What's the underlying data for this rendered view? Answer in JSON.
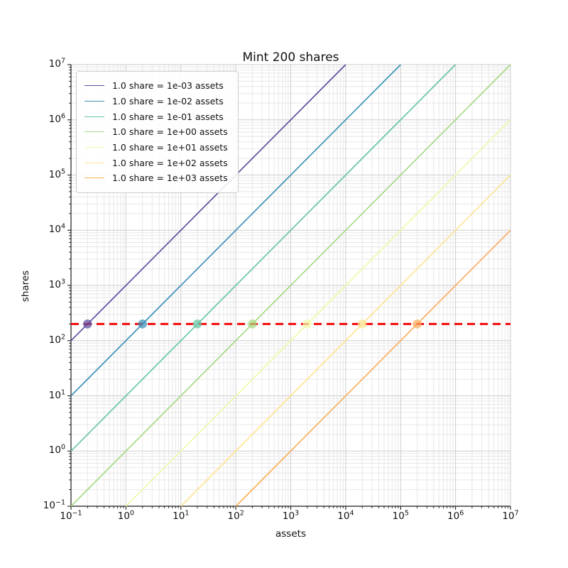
{
  "chart_data": {
    "type": "line",
    "title": "Mint 200 shares",
    "xlabel": "assets",
    "ylabel": "shares",
    "xscale": "log",
    "yscale": "log",
    "xlim": [
      0.1,
      10000000
    ],
    "ylim": [
      0.1,
      10000000
    ],
    "x_tick_exponents": [
      -1,
      0,
      1,
      2,
      3,
      4,
      5,
      6,
      7
    ],
    "y_tick_exponents": [
      -1,
      0,
      1,
      2,
      3,
      4,
      5,
      6,
      7
    ],
    "grid": "major and minor gridlines, both axes",
    "legend_position": "upper left",
    "shares_minted": 200,
    "series": [
      {
        "label": "1.0 share = 1e-03 assets",
        "assets_per_share": 0.001,
        "color": "#5e4fa2",
        "dot": {
          "assets": 0.2,
          "shares": 200
        }
      },
      {
        "label": "1.0 share = 1e-02 assets",
        "assets_per_share": 0.01,
        "color": "#3e93b8",
        "dot": {
          "assets": 2,
          "shares": 200
        }
      },
      {
        "label": "1.0 share = 1e-01 assets",
        "assets_per_share": 0.1,
        "color": "#69c5a4",
        "dot": {
          "assets": 20,
          "shares": 200
        }
      },
      {
        "label": "1.0 share = 1e+00 assets",
        "assets_per_share": 1,
        "color": "#a8da85",
        "dot": {
          "assets": 200,
          "shares": 200
        }
      },
      {
        "label": "1.0 share = 1e+01 assets",
        "assets_per_share": 10,
        "color": "#f1f9a9",
        "dot": {
          "assets": 2000,
          "shares": 200
        }
      },
      {
        "label": "1.0 share = 1e+02 assets",
        "assets_per_share": 100,
        "color": "#fee593",
        "dot": {
          "assets": 20000,
          "shares": 200
        }
      },
      {
        "label": "1.0 share = 1e+03 assets",
        "assets_per_share": 1000,
        "color": "#fdae61",
        "dot": {
          "assets": 200000,
          "shares": 200
        }
      }
    ],
    "mint_line": {
      "shares": 200,
      "color": "#f40000",
      "linestyle": "dashed"
    }
  },
  "style": {
    "grid_major_color": "#cdcdcd",
    "grid_minor_color": "#e7e7e7",
    "spine_color": "#1a1a1a",
    "top_right_edge_color": "#c8c8c8",
    "background": "#ffffff"
  }
}
